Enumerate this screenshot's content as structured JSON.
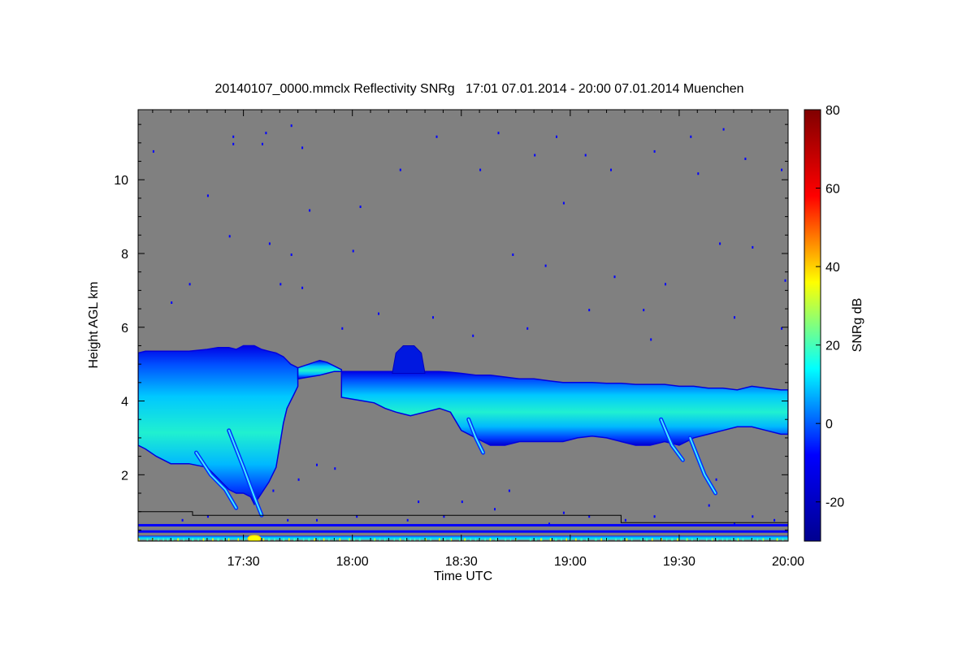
{
  "chart_data": {
    "type": "heatmap",
    "title": "20140107_0000.mmclx Reflectivity SNRg   17:01 07.01.2014 - 20:00 07.01.2014 Muenchen",
    "xlabel": "Time UTC",
    "ylabel": "Height AGL km",
    "colorbar_label": "SNRg dB",
    "x_range_minutes": [
      1021,
      1200
    ],
    "x_ticks": [
      {
        "minute": 1050,
        "label": "17:30"
      },
      {
        "minute": 1080,
        "label": "18:00"
      },
      {
        "minute": 1110,
        "label": "18:30"
      },
      {
        "minute": 1140,
        "label": "19:00"
      },
      {
        "minute": 1170,
        "label": "19:30"
      },
      {
        "minute": 1200,
        "label": "20:00"
      }
    ],
    "y_range_km": [
      0.2,
      11.9
    ],
    "y_ticks": [
      2,
      4,
      6,
      8,
      10
    ],
    "colorbar_range": [
      -30,
      80
    ],
    "colorbar_ticks": [
      -20,
      0,
      20,
      40,
      60,
      80
    ],
    "colormap": [
      "#00008f",
      "#0000ff",
      "#00ffff",
      "#ffff00",
      "#ff0000",
      "#800000"
    ],
    "background_color": "#808080",
    "cloud_layers": [
      {
        "name": "cloud-1",
        "points": [
          [
            1021,
            5.3,
            2.8
          ],
          [
            1023,
            5.35,
            2.7
          ],
          [
            1026,
            5.35,
            2.5
          ],
          [
            1030,
            5.35,
            2.3
          ],
          [
            1035,
            5.35,
            2.3
          ],
          [
            1040,
            5.4,
            2.2
          ],
          [
            1043,
            5.45,
            1.9
          ],
          [
            1046,
            5.45,
            1.6
          ],
          [
            1048,
            5.4,
            1.5
          ],
          [
            1050,
            5.5,
            1.5
          ],
          [
            1052,
            5.5,
            1.4
          ],
          [
            1053,
            5.5,
            1.2
          ],
          [
            1055,
            5.4,
            1.5
          ],
          [
            1057,
            5.35,
            1.8
          ],
          [
            1059,
            5.3,
            2.2
          ],
          [
            1060,
            5.25,
            2.8
          ],
          [
            1061,
            5.2,
            3.4
          ],
          [
            1062,
            5.1,
            3.8
          ],
          [
            1063,
            5.0,
            4.0
          ],
          [
            1064,
            4.95,
            4.2
          ],
          [
            1065,
            4.9,
            4.4
          ]
        ]
      },
      {
        "name": "cloud-2",
        "points": [
          [
            1065,
            4.9,
            4.6
          ],
          [
            1068,
            5.0,
            4.65
          ],
          [
            1071,
            5.1,
            4.7
          ],
          [
            1073,
            5.05,
            4.75
          ],
          [
            1075,
            4.95,
            4.8
          ],
          [
            1077,
            4.85,
            4.8
          ]
        ]
      },
      {
        "name": "cloud-3",
        "points": [
          [
            1077,
            4.8,
            4.1
          ],
          [
            1080,
            4.8,
            4.05
          ],
          [
            1083,
            4.8,
            4.0
          ],
          [
            1086,
            4.8,
            3.95
          ],
          [
            1089,
            4.8,
            3.8
          ],
          [
            1092,
            4.8,
            3.7
          ],
          [
            1096,
            4.8,
            3.6
          ],
          [
            1100,
            4.8,
            3.7
          ],
          [
            1104,
            4.8,
            3.8
          ],
          [
            1107,
            4.78,
            3.7
          ],
          [
            1110,
            4.75,
            3.2
          ],
          [
            1114,
            4.7,
            3.0
          ],
          [
            1118,
            4.7,
            2.8
          ],
          [
            1122,
            4.65,
            2.8
          ],
          [
            1126,
            4.6,
            2.9
          ],
          [
            1130,
            4.6,
            2.9
          ],
          [
            1134,
            4.55,
            2.9
          ],
          [
            1138,
            4.5,
            2.9
          ],
          [
            1142,
            4.5,
            3.0
          ],
          [
            1146,
            4.5,
            3.05
          ],
          [
            1150,
            4.48,
            3.0
          ],
          [
            1154,
            4.48,
            2.9
          ],
          [
            1158,
            4.45,
            2.8
          ],
          [
            1162,
            4.45,
            2.8
          ],
          [
            1166,
            4.45,
            2.9
          ],
          [
            1170,
            4.4,
            2.8
          ],
          [
            1174,
            4.4,
            3.0
          ],
          [
            1178,
            4.35,
            3.1
          ],
          [
            1182,
            4.35,
            3.2
          ],
          [
            1186,
            4.3,
            3.3
          ],
          [
            1190,
            4.4,
            3.3
          ],
          [
            1194,
            4.35,
            3.2
          ],
          [
            1198,
            4.3,
            3.1
          ],
          [
            1200,
            4.3,
            3.1
          ]
        ]
      }
    ],
    "fallstreaks": [
      {
        "points": [
          [
            1046,
            3.2
          ],
          [
            1050,
            2.2
          ],
          [
            1053,
            1.4
          ],
          [
            1055,
            0.9
          ]
        ]
      },
      {
        "points": [
          [
            1037,
            2.6
          ],
          [
            1041,
            2.0
          ],
          [
            1045,
            1.6
          ],
          [
            1048,
            1.1
          ]
        ]
      },
      {
        "points": [
          [
            1112,
            3.5
          ],
          [
            1114,
            3.0
          ],
          [
            1116,
            2.6
          ]
        ]
      },
      {
        "points": [
          [
            1165,
            3.5
          ],
          [
            1168,
            2.8
          ],
          [
            1171,
            2.4
          ]
        ]
      },
      {
        "points": [
          [
            1173,
            3.0
          ],
          [
            1177,
            2.0
          ],
          [
            1180,
            1.5
          ]
        ]
      }
    ],
    "turret": {
      "points": [
        [
          1091,
          4.75
        ],
        [
          1092,
          5.3
        ],
        [
          1094,
          5.5
        ],
        [
          1097,
          5.5
        ],
        [
          1099,
          5.3
        ],
        [
          1100,
          4.75
        ]
      ]
    },
    "noise_points": [
      [
        1056,
        11.3
      ],
      [
        1047,
        11.2
      ],
      [
        1055,
        11.0
      ],
      [
        1066,
        10.9
      ],
      [
        1025,
        10.8
      ],
      [
        1063,
        11.5
      ],
      [
        1047,
        11.0
      ],
      [
        1120,
        11.3
      ],
      [
        1136,
        11.2
      ],
      [
        1144,
        10.7
      ],
      [
        1173,
        11.2
      ],
      [
        1182,
        11.4
      ],
      [
        1163,
        10.8
      ],
      [
        1115,
        10.3
      ],
      [
        1130,
        10.7
      ],
      [
        1138,
        9.4
      ],
      [
        1151,
        10.3
      ],
      [
        1175,
        10.2
      ],
      [
        1188,
        10.6
      ],
      [
        1198,
        10.3
      ],
      [
        1063,
        8.0
      ],
      [
        1068,
        9.2
      ],
      [
        1082,
        9.3
      ],
      [
        1093,
        10.3
      ],
      [
        1103,
        11.2
      ],
      [
        1046,
        8.5
      ],
      [
        1057,
        8.3
      ],
      [
        1080,
        8.1
      ],
      [
        1124,
        8.0
      ],
      [
        1133,
        7.7
      ],
      [
        1152,
        7.4
      ],
      [
        1166,
        7.2
      ],
      [
        1181,
        8.3
      ],
      [
        1199,
        7.3
      ],
      [
        1040,
        9.6
      ],
      [
        1035,
        7.2
      ],
      [
        1060,
        7.2
      ],
      [
        1066,
        7.1
      ],
      [
        1102,
        6.3
      ],
      [
        1145,
        6.5
      ],
      [
        1160,
        6.5
      ],
      [
        1185,
        6.3
      ],
      [
        1190,
        8.2
      ],
      [
        1198,
        6.0
      ],
      [
        1030,
        6.7
      ],
      [
        1077,
        6.0
      ],
      [
        1087,
        6.4
      ],
      [
        1113,
        5.8
      ],
      [
        1128,
        6.0
      ],
      [
        1162,
        5.7
      ],
      [
        1110,
        1.3
      ],
      [
        1119,
        1.1
      ],
      [
        1134,
        0.7
      ],
      [
        1138,
        1.0
      ],
      [
        1145,
        0.9
      ],
      [
        1155,
        0.8
      ],
      [
        1163,
        0.9
      ],
      [
        1178,
        1.2
      ],
      [
        1185,
        0.7
      ],
      [
        1190,
        0.9
      ],
      [
        1196,
        0.8
      ],
      [
        1033,
        0.8
      ],
      [
        1040,
        0.9
      ],
      [
        1062,
        0.8
      ],
      [
        1070,
        0.8
      ],
      [
        1081,
        0.9
      ],
      [
        1095,
        0.8
      ],
      [
        1105,
        0.9
      ],
      [
        1098,
        1.3
      ],
      [
        1123,
        1.6
      ],
      [
        1058,
        1.6
      ],
      [
        1065,
        1.9
      ],
      [
        1070,
        2.3
      ],
      [
        1075,
        2.2
      ],
      [
        1180,
        1.9
      ]
    ],
    "bottom_clutter": {
      "color_strong": "#0000ff",
      "color_bright": "#00ffff",
      "hotspot_color": "#ffff00",
      "hotspot_minute": 1053
    },
    "overlay_line": {
      "color": "#000000",
      "points": [
        [
          1021,
          1.0
        ],
        [
          1036,
          1.0
        ],
        [
          1036,
          0.9
        ],
        [
          1154,
          0.9
        ],
        [
          1154,
          0.7
        ],
        [
          1200,
          0.7
        ]
      ]
    }
  }
}
